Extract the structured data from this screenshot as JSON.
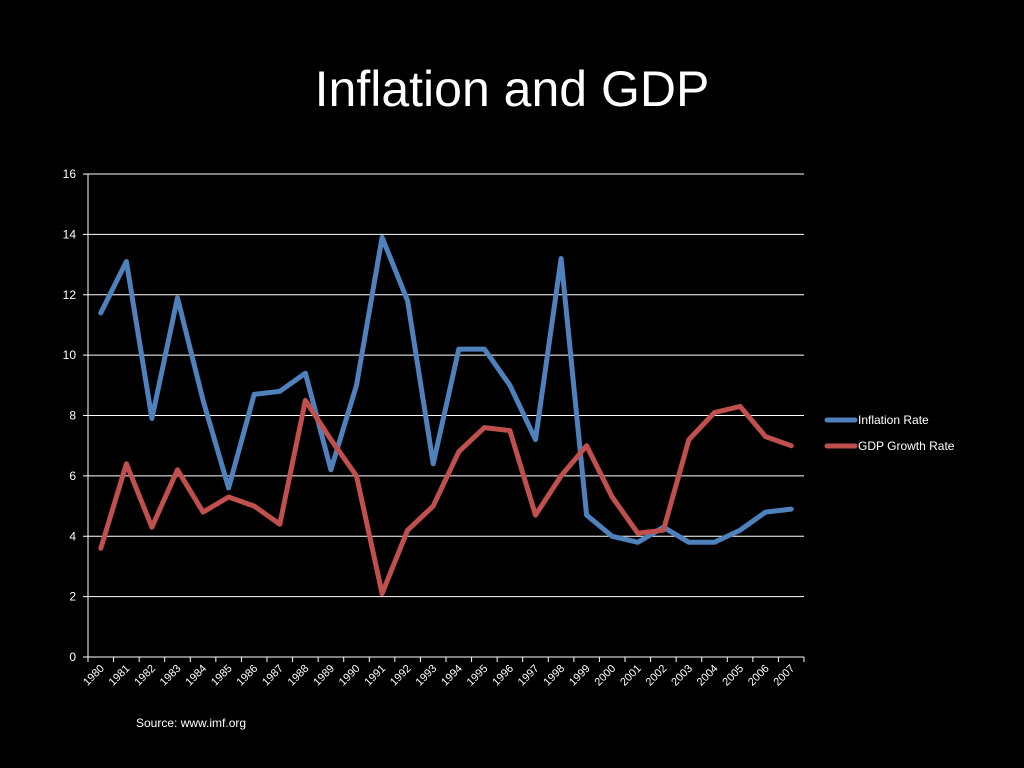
{
  "slide": {
    "title": "Inflation and GDP",
    "source_note": "Source:  www.imf.org"
  },
  "colors": {
    "background": "#000000",
    "text": "#ffffff",
    "gridline": "#ffffff",
    "inflation": "#4f81bd",
    "gdp": "#c0504d"
  },
  "chart_data": {
    "type": "line",
    "title": "",
    "xlabel": "",
    "ylabel": "",
    "ylim": [
      0,
      16
    ],
    "yticks": [
      0,
      2,
      4,
      6,
      8,
      10,
      12,
      14,
      16
    ],
    "grid": "horizontal",
    "legend_position": "right",
    "categories": [
      "1980",
      "1981",
      "1982",
      "1983",
      "1984",
      "1985",
      "1986",
      "1987",
      "1988",
      "1989",
      "1990",
      "1991",
      "1992",
      "1993",
      "1994",
      "1995",
      "1996",
      "1997",
      "1998",
      "1999",
      "2000",
      "2001",
      "2002",
      "2003",
      "2004",
      "2005",
      "2006",
      "2007"
    ],
    "series": [
      {
        "name": "Inflation Rate",
        "color": "#4f81bd",
        "values": [
          11.4,
          13.1,
          7.9,
          11.9,
          8.5,
          5.6,
          8.7,
          8.8,
          9.4,
          6.2,
          9.0,
          13.9,
          11.8,
          6.4,
          10.2,
          10.2,
          9.0,
          7.2,
          13.2,
          4.7,
          4.0,
          3.8,
          4.3,
          3.8,
          3.8,
          4.2,
          4.8,
          4.9
        ]
      },
      {
        "name": "GDP Growth Rate",
        "color": "#c0504d",
        "values": [
          3.6,
          6.4,
          4.3,
          6.2,
          4.8,
          5.3,
          5.0,
          4.4,
          8.5,
          7.2,
          6.0,
          2.1,
          4.2,
          5.0,
          6.8,
          7.6,
          7.5,
          4.7,
          6.0,
          7.0,
          5.3,
          4.1,
          4.2,
          7.2,
          8.1,
          8.3,
          7.3,
          7.0
        ]
      }
    ]
  }
}
